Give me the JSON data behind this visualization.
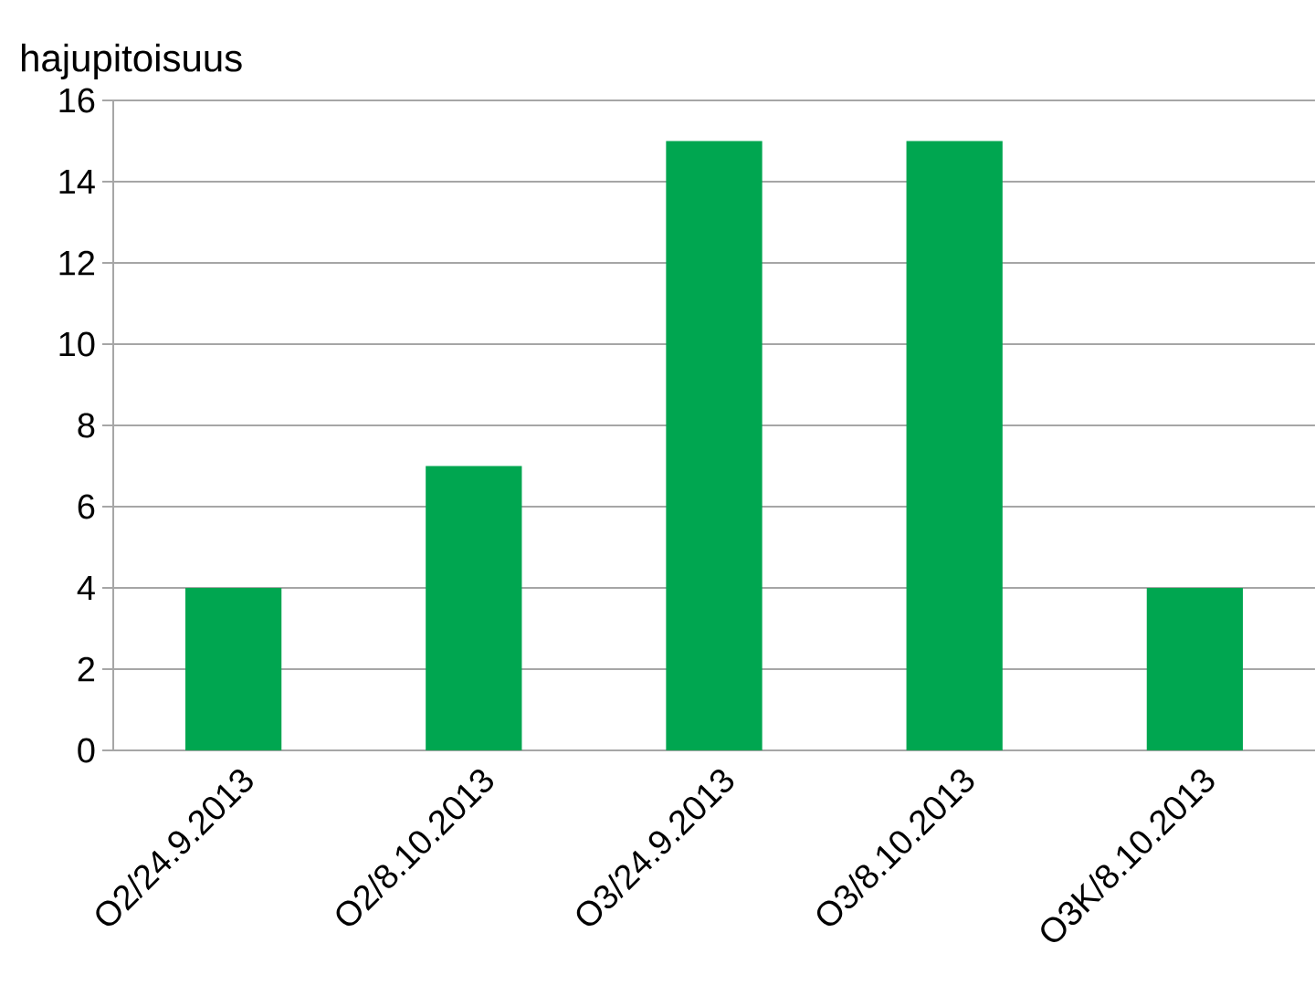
{
  "chart_data": {
    "type": "bar",
    "ylabel": "hajupitoisuus",
    "categories": [
      "O2/24.9.2013",
      "O2/8.10.2013",
      "O3/24.9.2013",
      "O3/8.10.2013",
      "O3K/8.10.2013"
    ],
    "values": [
      4,
      7,
      15,
      15,
      4
    ],
    "color": "#00a650",
    "ylim": [
      0,
      16
    ],
    "yticks": [
      0,
      2,
      4,
      6,
      8,
      10,
      12,
      14,
      16
    ],
    "grid": "y"
  }
}
